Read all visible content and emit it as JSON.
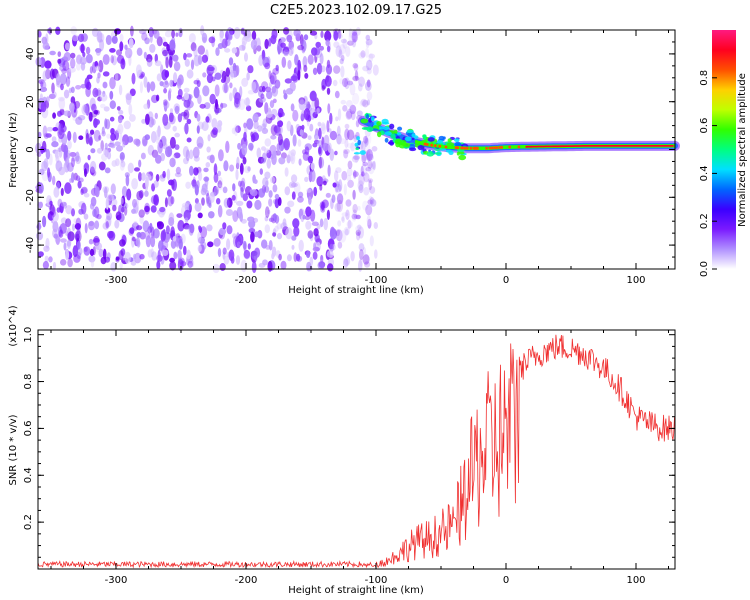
{
  "title": "C2E5.2023.102.09.17.G25",
  "chart_data": [
    {
      "type": "heatmap",
      "xlabel": "Height of straight line (km)",
      "ylabel": "Frequency (Hz)",
      "xlim": [
        -360,
        130
      ],
      "ylim": [
        -50,
        50
      ],
      "xticks": [
        -300,
        -200,
        -100,
        0,
        100
      ],
      "yticks": [
        -40,
        -20,
        0,
        20,
        40
      ],
      "colorbar": {
        "label": "Normalized spectral amplitude",
        "range": [
          0,
          1
        ],
        "ticks": [
          "0.0",
          "0.2",
          "0.4",
          "0.6",
          "0.8"
        ],
        "colors": [
          "#ffffff",
          "#b090ff",
          "#7a1aff",
          "#3a00ff",
          "#0066ff",
          "#00e0ff",
          "#00ff80",
          "#30ff00",
          "#c0ff00",
          "#ffd000",
          "#ff5000",
          "#ff0020",
          "#ff1a80"
        ]
      },
      "noise_region": {
        "x_from": -360,
        "x_to": -100
      },
      "signal_track": [
        {
          "x": -110,
          "y": 12
        },
        {
          "x": -90,
          "y": 7
        },
        {
          "x": -75,
          "y": 4
        },
        {
          "x": -60,
          "y": 2
        },
        {
          "x": -45,
          "y": 1
        },
        {
          "x": -30,
          "y": 0.5
        },
        {
          "x": -15,
          "y": 0.5
        },
        {
          "x": 0,
          "y": 1
        },
        {
          "x": 20,
          "y": 1.2
        },
        {
          "x": 60,
          "y": 1.5
        },
        {
          "x": 100,
          "y": 1.5
        },
        {
          "x": 130,
          "y": 1.5
        }
      ]
    },
    {
      "type": "line",
      "xlabel": "Height of straight line (km)",
      "ylabel": "SNR (10 * v/v)",
      "scale_label": "(x10^4)",
      "xlim": [
        -360,
        130
      ],
      "ylim": [
        0,
        1.02
      ],
      "xticks": [
        -300,
        -200,
        -100,
        0,
        100
      ],
      "yticks": [
        "0.2",
        "0.4",
        "0.6",
        "0.8",
        "1.0"
      ],
      "series": [
        {
          "color": "#f03030",
          "points": [
            [
              -360,
              0.02
            ],
            [
              -200,
              0.02
            ],
            [
              -110,
              0.02
            ],
            [
              -100,
              0.025
            ],
            [
              -90,
              0.05
            ],
            [
              -80,
              0.1
            ],
            [
              -70,
              0.15
            ],
            [
              -60,
              0.17
            ],
            [
              -50,
              0.2
            ],
            [
              -40,
              0.25
            ],
            [
              -30,
              0.45
            ],
            [
              -25,
              0.55
            ],
            [
              -20,
              0.65
            ],
            [
              -10,
              0.7
            ],
            [
              0,
              0.78
            ],
            [
              10,
              0.85
            ],
            [
              20,
              0.9
            ],
            [
              30,
              0.93
            ],
            [
              40,
              0.95
            ],
            [
              50,
              0.94
            ],
            [
              60,
              0.92
            ],
            [
              70,
              0.88
            ],
            [
              80,
              0.83
            ],
            [
              90,
              0.75
            ],
            [
              100,
              0.65
            ],
            [
              110,
              0.62
            ],
            [
              120,
              0.6
            ],
            [
              130,
              0.6
            ]
          ]
        }
      ]
    }
  ]
}
